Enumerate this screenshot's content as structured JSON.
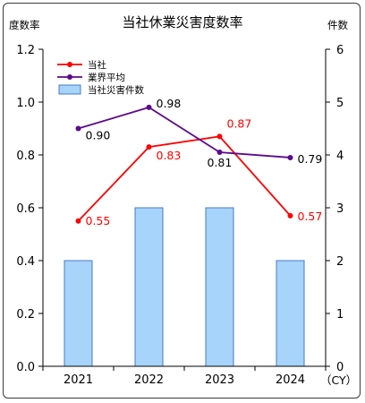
{
  "chart_data": {
    "type": "bar+line",
    "title": "当社休業災害度数率",
    "left_axis_label": "度数率",
    "right_axis_label": "件数",
    "x_unit": "（CY）",
    "categories": [
      "2021",
      "2022",
      "2023",
      "2024"
    ],
    "left_ylim": [
      0,
      1.2
    ],
    "left_ticks": [
      "0.0",
      "0.2",
      "0.4",
      "0.6",
      "0.8",
      "1.0",
      "1.2"
    ],
    "right_ylim": [
      0,
      6
    ],
    "right_ticks": [
      "0",
      "1",
      "2",
      "3",
      "4",
      "5",
      "6"
    ],
    "legend_position": "top-left",
    "series": [
      {
        "name": "当社",
        "kind": "line",
        "axis": "left",
        "color": "#ff0000",
        "values": [
          0.55,
          0.83,
          0.87,
          0.57
        ],
        "labels": [
          "0.55",
          "0.83",
          "0.87",
          "0.57"
        ]
      },
      {
        "name": "業界平均",
        "kind": "line",
        "axis": "left",
        "color": "#5b0a8c",
        "values": [
          0.9,
          0.98,
          0.81,
          0.79
        ],
        "labels": [
          "0.90",
          "0.98",
          "0.81",
          "0.79"
        ]
      },
      {
        "name": "当社災害件数",
        "kind": "bar",
        "axis": "right",
        "color": "#a6d4fa",
        "border": "#4a78c8",
        "values": [
          2,
          3,
          3,
          2
        ]
      }
    ]
  }
}
